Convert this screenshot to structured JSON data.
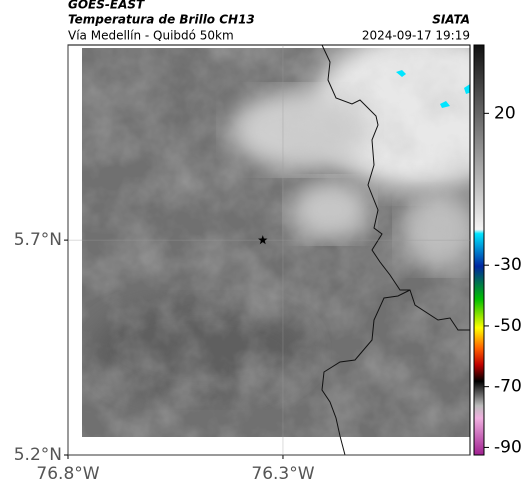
{
  "header": {
    "satellite": "GOES-EAST",
    "product": "Temperatura de Brillo CH13",
    "route": "Vía Medellín - Quibdó 50km",
    "source": "SIATA",
    "timestamp": "2024-09-17 19:19"
  },
  "map": {
    "xlim": [
      -76.8,
      -75.865
    ],
    "ylim": [
      5.2,
      6.154
    ],
    "xticks": [
      {
        "value": -76.8,
        "label": "76.8°W"
      },
      {
        "value": -76.3,
        "label": "76.3°W"
      }
    ],
    "yticks": [
      {
        "value": 5.7,
        "label": "5.7°N"
      },
      {
        "value": 5.2,
        "label": "5.2°N"
      }
    ],
    "grid": true,
    "marker": {
      "lon": -76.347,
      "lat": 5.7
    }
  },
  "colorbar": {
    "clim": [
      -92.5,
      42.5
    ],
    "ticks": [
      20,
      -30,
      -50,
      -70,
      -90
    ]
  }
}
